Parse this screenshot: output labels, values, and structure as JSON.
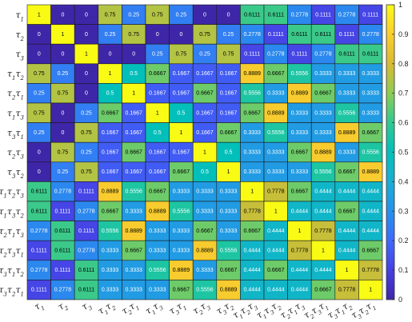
{
  "chart_data": {
    "type": "heatmap",
    "title": "",
    "xlabel": "",
    "ylabel": "",
    "row_labels": [
      "τ1",
      "τ2",
      "τ3",
      "τ1τ2",
      "τ2τ1",
      "τ1τ3",
      "τ3τ1",
      "τ2τ3",
      "τ3τ2",
      "τ1τ2τ3",
      "τ1τ3τ2",
      "τ2τ1τ3",
      "τ2τ3τ1",
      "τ3τ1τ2",
      "τ3τ2τ1"
    ],
    "col_labels": [
      "τ1",
      "τ2",
      "τ3",
      "τ1τ2",
      "τ2τ1",
      "τ1τ3",
      "τ3τ1",
      "τ2τ3",
      "τ3τ2",
      "τ1τ2τ3",
      "τ1τ3τ2",
      "τ2τ1τ3",
      "τ2τ3τ1",
      "τ3τ1τ2",
      "τ3τ2τ1"
    ],
    "values": [
      [
        1,
        0,
        0,
        0.75,
        0.25,
        0.75,
        0.25,
        0,
        0,
        0.6111,
        0.6111,
        0.2778,
        0.1111,
        0.2778,
        0.1111
      ],
      [
        0,
        1,
        0,
        0.25,
        0.75,
        0,
        0,
        0.75,
        0.25,
        0.2778,
        0.1111,
        0.6111,
        0.6111,
        0.1111,
        0.2778
      ],
      [
        0,
        0,
        1,
        0,
        0,
        0.25,
        0.75,
        0.25,
        0.75,
        0.1111,
        0.2778,
        0.1111,
        0.2778,
        0.6111,
        0.6111
      ],
      [
        0.75,
        0.25,
        0,
        1,
        0.5,
        0.6667,
        0.1667,
        0.1667,
        0.1667,
        0.8889,
        0.6667,
        0.5556,
        0.3333,
        0.3333,
        0.3333
      ],
      [
        0.25,
        0.75,
        0,
        0.5,
        1,
        0.1667,
        0.1667,
        0.6667,
        0.1667,
        0.5556,
        0.3333,
        0.8889,
        0.6667,
        0.3333,
        0.3333
      ],
      [
        0.75,
        0,
        0.25,
        0.6667,
        0.1667,
        1,
        0.5,
        0.1667,
        0.1667,
        0.6667,
        0.8889,
        0.3333,
        0.3333,
        0.5556,
        0.3333
      ],
      [
        0.25,
        0,
        0.75,
        0.1667,
        0.1667,
        0.5,
        1,
        0.1667,
        0.6667,
        0.3333,
        0.5556,
        0.3333,
        0.3333,
        0.8889,
        0.6667
      ],
      [
        0,
        0.75,
        0.25,
        0.1667,
        0.6667,
        0.1667,
        0.1667,
        1,
        0.5,
        0.3333,
        0.3333,
        0.6667,
        0.8889,
        0.3333,
        0.5556
      ],
      [
        0,
        0.25,
        0.75,
        0.1667,
        0.1667,
        0.1667,
        0.6667,
        0.5,
        1,
        0.3333,
        0.3333,
        0.3333,
        0.5556,
        0.6667,
        0.8889
      ],
      [
        0.6111,
        0.2778,
        0.1111,
        0.8889,
        0.5556,
        0.6667,
        0.3333,
        0.3333,
        0.3333,
        1,
        0.7778,
        0.6667,
        0.4444,
        0.4444,
        0.4444
      ],
      [
        0.6111,
        0.1111,
        0.2778,
        0.6667,
        0.3333,
        0.8889,
        0.5556,
        0.3333,
        0.3333,
        0.7778,
        1,
        0.4444,
        0.4444,
        0.6667,
        0.4444
      ],
      [
        0.2778,
        0.6111,
        0.1111,
        0.5556,
        0.8889,
        0.3333,
        0.3333,
        0.6667,
        0.3333,
        0.6667,
        0.4444,
        1,
        0.7778,
        0.4444,
        0.4444
      ],
      [
        0.1111,
        0.6111,
        0.2778,
        0.3333,
        0.6667,
        0.3333,
        0.3333,
        0.8889,
        0.5556,
        0.4444,
        0.4444,
        0.7778,
        1,
        0.4444,
        0.6667
      ],
      [
        0.2778,
        0.1111,
        0.6111,
        0.3333,
        0.3333,
        0.5556,
        0.8889,
        0.3333,
        0.6667,
        0.4444,
        0.6667,
        0.4444,
        0.4444,
        1,
        0.7778
      ],
      [
        0.1111,
        0.2778,
        0.6111,
        0.3333,
        0.3333,
        0.3333,
        0.6667,
        0.5556,
        0.8889,
        0.4444,
        0.4444,
        0.4444,
        0.6667,
        0.7778,
        1
      ]
    ],
    "colormap": "parula",
    "color_range": [
      0,
      1
    ],
    "colorbar_ticks": [
      "0",
      "0.1",
      "0.2",
      "0.3",
      "0.4",
      "0.5",
      "0.6",
      "0.7",
      "0.8",
      "0.9",
      "1"
    ],
    "grid": true,
    "colorbar_position": "right"
  }
}
